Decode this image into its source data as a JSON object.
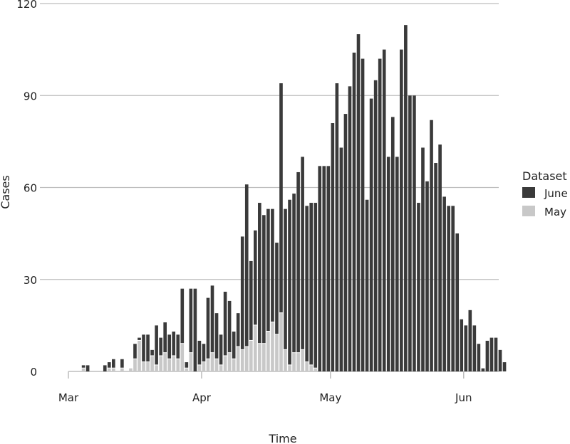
{
  "chart_data": {
    "type": "bar",
    "stacked": true,
    "title": "",
    "xlabel": "Time",
    "ylabel": "Cases",
    "ylim": [
      0,
      120
    ],
    "yticks": [
      0,
      30,
      60,
      90,
      120
    ],
    "grid": {
      "y": true,
      "x": false
    },
    "xtick_labels": [
      {
        "label": "Mar",
        "day_index": 0
      },
      {
        "label": "Apr",
        "day_index": 31
      },
      {
        "label": "May",
        "day_index": 61
      },
      {
        "label": "Jun",
        "day_index": 92
      }
    ],
    "start_date": "Mar 1",
    "legend": {
      "title": "Dataset",
      "position": "right",
      "entries": [
        {
          "name": "June",
          "color": "#3a3a3a"
        },
        {
          "name": "May",
          "color": "#c8c8c8"
        }
      ]
    },
    "series": [
      {
        "name": "May",
        "color": "#c8c8c8",
        "values": [
          0,
          0,
          0,
          1,
          0,
          0,
          0,
          0,
          0,
          1,
          1,
          0,
          1,
          0,
          1,
          4,
          10,
          3,
          3,
          5,
          2,
          5,
          6,
          4,
          5,
          4,
          9,
          1,
          6,
          0,
          2,
          3,
          4,
          6,
          4,
          2,
          5,
          6,
          4,
          8,
          7,
          8,
          10,
          15,
          9,
          9,
          13,
          16,
          12,
          19,
          7,
          2,
          6,
          6,
          7,
          3,
          2,
          1,
          0,
          0,
          0,
          0,
          0,
          0,
          0,
          0,
          0,
          0,
          0,
          0,
          0,
          0,
          0,
          0,
          0,
          0,
          0,
          0,
          0,
          0,
          0,
          0,
          0,
          0,
          0,
          0,
          0,
          0,
          0,
          0,
          0,
          0,
          0,
          0,
          0,
          0,
          0,
          0,
          0,
          0,
          0,
          0,
          0,
          0
        ]
      },
      {
        "name": "June",
        "color": "#3a3a3a",
        "values": [
          0,
          0,
          0,
          1,
          2,
          0,
          0,
          0,
          2,
          2,
          3,
          0,
          3,
          0,
          0,
          5,
          1,
          9,
          9,
          2,
          13,
          6,
          10,
          8,
          8,
          8,
          18,
          2,
          21,
          27,
          8,
          6,
          20,
          22,
          15,
          10,
          21,
          17,
          9,
          11,
          37,
          53,
          26,
          31,
          46,
          42,
          40,
          37,
          30,
          75,
          46,
          54,
          52,
          59,
          63,
          51,
          53,
          54,
          67,
          67,
          67,
          81,
          94,
          73,
          84,
          93,
          104,
          110,
          102,
          56,
          89,
          95,
          102,
          105,
          70,
          83,
          70,
          105,
          113,
          90,
          90,
          55,
          73,
          62,
          82,
          68,
          74,
          57,
          54,
          54,
          45,
          17,
          15,
          20,
          15,
          9,
          1,
          10,
          11,
          11,
          7,
          3,
          0,
          0
        ]
      }
    ]
  },
  "axes": {
    "y_ticks": [
      "0",
      "30",
      "60",
      "90",
      "120"
    ],
    "x_ticks": [
      "Mar",
      "Apr",
      "May",
      "Jun"
    ],
    "x_title": "Time",
    "y_title": "Cases"
  },
  "legend": {
    "title": "Dataset",
    "items": [
      "June",
      "May"
    ]
  }
}
